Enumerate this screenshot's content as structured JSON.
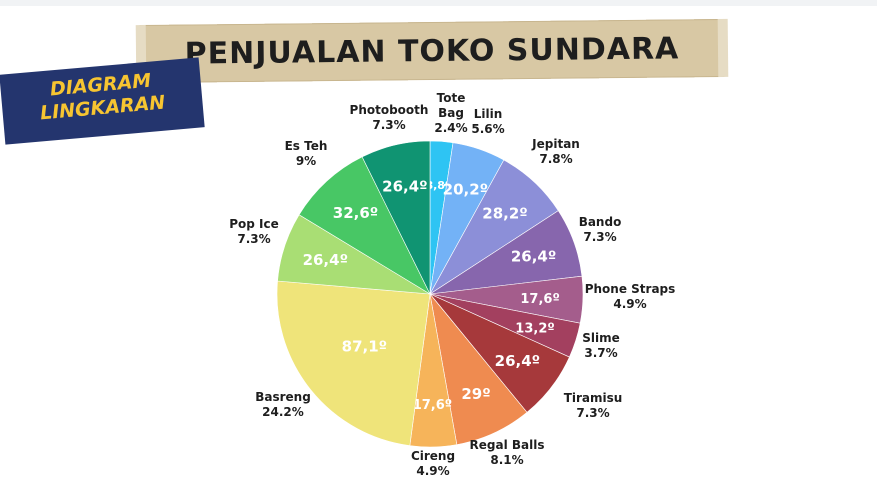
{
  "title": "PENJUALAN TOKO SUNDARA",
  "badge": {
    "line1": "DIAGRAM",
    "line2": "LINGKARAN"
  },
  "colors": {
    "badge_bg": "#24356e",
    "badge_text": "#f7c531",
    "title_text": "#1e1e1e"
  },
  "chart_data": {
    "type": "pie",
    "title": "PENJUALAN TOKO SUNDARA",
    "slices": [
      {
        "label": "Tote Bag",
        "percent": "2.4%",
        "value": 2.4,
        "angle_label": "8,8º",
        "color": "#2ec4f3"
      },
      {
        "label": "Lilin",
        "percent": "5.6%",
        "value": 5.6,
        "angle_label": "20,2º",
        "color": "#73b2f6"
      },
      {
        "label": "Jepitan",
        "percent": "7.8%",
        "value": 7.8,
        "angle_label": "28,2º",
        "color": "#8c8fd8"
      },
      {
        "label": "Bando",
        "percent": "7.3%",
        "value": 7.3,
        "angle_label": "26,4º",
        "color": "#8766ad"
      },
      {
        "label": "Phone Straps",
        "percent": "4.9%",
        "value": 4.9,
        "angle_label": "17,6º",
        "color": "#a45d8c"
      },
      {
        "label": "Slime",
        "percent": "3.7%",
        "value": 3.7,
        "angle_label": "13,2º",
        "color": "#a3405f"
      },
      {
        "label": "Tiramisu",
        "percent": "7.3%",
        "value": 7.3,
        "angle_label": "26,4º",
        "color": "#a6393b"
      },
      {
        "label": "Regal Balls",
        "percent": "8.1%",
        "value": 8.1,
        "angle_label": "29º",
        "color": "#ef8b50"
      },
      {
        "label": "Cireng",
        "percent": "4.9%",
        "value": 4.9,
        "angle_label": "17,6º",
        "color": "#f6b45a"
      },
      {
        "label": "Basreng",
        "percent": "24.2%",
        "value": 24.2,
        "angle_label": "87,1º",
        "color": "#efe47a"
      },
      {
        "label": "Pop Ice",
        "percent": "7.3%",
        "value": 7.3,
        "angle_label": "26,4º",
        "color": "#a9de74"
      },
      {
        "label": "Es Teh",
        "percent": "9%",
        "value": 9.0,
        "angle_label": "32,6º",
        "color": "#48c765"
      },
      {
        "label": "Photobooth",
        "percent": "7.3%",
        "value": 7.3,
        "angle_label": "26,4º",
        "color": "#109472"
      }
    ]
  }
}
